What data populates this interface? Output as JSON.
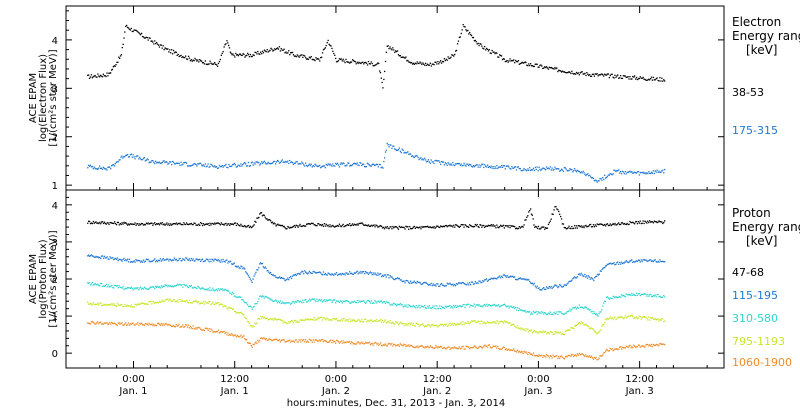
{
  "chart_data": [
    {
      "type": "scatter",
      "ylabel_lines": [
        "ACE EPAM",
        "log(Electron Flux)",
        "[1/(cm²s ster MeV)]"
      ],
      "legend_title": [
        "Electron",
        "Energy ranges",
        "[keV]"
      ],
      "ylim": [
        0.9,
        4.7
      ],
      "yticks": [
        "1",
        "2",
        "3",
        "4"
      ],
      "series": [
        {
          "name": "38-53",
          "color": "#000000",
          "points": [
            [
              -5.5,
              3.25
            ],
            [
              -3,
              3.3
            ],
            [
              -1.5,
              3.7
            ],
            [
              -1,
              4.3
            ],
            [
              1,
              4.1
            ],
            [
              4,
              3.8
            ],
            [
              7,
              3.6
            ],
            [
              10,
              3.5
            ],
            [
              11,
              4.0
            ],
            [
              11.5,
              3.7
            ],
            [
              14,
              3.7
            ],
            [
              17,
              3.85
            ],
            [
              19,
              3.7
            ],
            [
              22,
              3.6
            ],
            [
              23,
              4.0
            ],
            [
              24,
              3.6
            ],
            [
              27,
              3.55
            ],
            [
              29,
              3.5
            ],
            [
              29.5,
              3.0
            ],
            [
              30,
              3.9
            ],
            [
              32,
              3.65
            ],
            [
              33,
              3.55
            ],
            [
              35,
              3.5
            ],
            [
              37,
              3.6
            ],
            [
              38,
              3.7
            ],
            [
              39,
              4.3
            ],
            [
              41,
              3.9
            ],
            [
              44,
              3.6
            ],
            [
              47,
              3.5
            ],
            [
              50,
              3.4
            ],
            [
              54,
              3.3
            ],
            [
              58,
              3.25
            ],
            [
              62,
              3.2
            ],
            [
              63,
              3.2
            ]
          ]
        },
        {
          "name": "175-315",
          "color": "#1f77d4",
          "points": [
            [
              -5.5,
              1.4
            ],
            [
              -3,
              1.35
            ],
            [
              -1,
              1.65
            ],
            [
              2,
              1.5
            ],
            [
              6,
              1.45
            ],
            [
              10,
              1.4
            ],
            [
              14,
              1.45
            ],
            [
              18,
              1.5
            ],
            [
              22,
              1.4
            ],
            [
              26,
              1.45
            ],
            [
              29.5,
              1.4
            ],
            [
              30,
              1.85
            ],
            [
              32,
              1.7
            ],
            [
              35,
              1.5
            ],
            [
              38,
              1.45
            ],
            [
              42,
              1.4
            ],
            [
              46,
              1.35
            ],
            [
              50,
              1.35
            ],
            [
              53,
              1.3
            ],
            [
              55,
              1.1
            ],
            [
              57,
              1.3
            ],
            [
              60,
              1.25
            ],
            [
              63,
              1.3
            ]
          ]
        }
      ]
    },
    {
      "type": "scatter",
      "ylabel_lines": [
        "ACE EPAM",
        "log(Proton Flux)",
        "[1/(cm²s ster MeV)]"
      ],
      "legend_title": [
        "Proton",
        "Energy ranges",
        "[keV]"
      ],
      "ylim": [
        -0.4,
        4.4
      ],
      "yticks": [
        "0",
        "1",
        "2",
        "3",
        "4"
      ],
      "series": [
        {
          "name": "47-68",
          "color": "#000000",
          "points": [
            [
              -5.5,
              3.55
            ],
            [
              0,
              3.5
            ],
            [
              6,
              3.5
            ],
            [
              12,
              3.5
            ],
            [
              14,
              3.4
            ],
            [
              15,
              3.8
            ],
            [
              16.5,
              3.5
            ],
            [
              18,
              3.4
            ],
            [
              21,
              3.5
            ],
            [
              24,
              3.45
            ],
            [
              27,
              3.5
            ],
            [
              30,
              3.4
            ],
            [
              34,
              3.4
            ],
            [
              38,
              3.45
            ],
            [
              42,
              3.45
            ],
            [
              46,
              3.4
            ],
            [
              47,
              3.9
            ],
            [
              47.5,
              3.4
            ],
            [
              49,
              3.4
            ],
            [
              50,
              4.0
            ],
            [
              51,
              3.4
            ],
            [
              54,
              3.45
            ],
            [
              57,
              3.5
            ],
            [
              60,
              3.55
            ],
            [
              63,
              3.55
            ]
          ]
        },
        {
          "name": "115-195",
          "color": "#1f77d4",
          "points": [
            [
              -5.5,
              2.65
            ],
            [
              0,
              2.5
            ],
            [
              6,
              2.55
            ],
            [
              11,
              2.5
            ],
            [
              13,
              2.3
            ],
            [
              14,
              1.95
            ],
            [
              15,
              2.45
            ],
            [
              16.5,
              2.1
            ],
            [
              18,
              2.0
            ],
            [
              20,
              2.2
            ],
            [
              24,
              2.15
            ],
            [
              27,
              2.2
            ],
            [
              30,
              2.1
            ],
            [
              32,
              1.95
            ],
            [
              36,
              1.85
            ],
            [
              40,
              1.9
            ],
            [
              44,
              2.1
            ],
            [
              47,
              1.95
            ],
            [
              48,
              1.75
            ],
            [
              51,
              1.85
            ],
            [
              53,
              2.15
            ],
            [
              54.5,
              2.0
            ],
            [
              56,
              2.4
            ],
            [
              59,
              2.5
            ],
            [
              63,
              2.5
            ]
          ]
        },
        {
          "name": "310-580",
          "color": "#2ed6d0",
          "points": [
            [
              -5.5,
              1.9
            ],
            [
              0,
              1.75
            ],
            [
              5,
              1.85
            ],
            [
              11,
              1.7
            ],
            [
              13,
              1.45
            ],
            [
              14,
              1.2
            ],
            [
              15,
              1.55
            ],
            [
              18,
              1.35
            ],
            [
              21,
              1.45
            ],
            [
              25,
              1.4
            ],
            [
              29,
              1.4
            ],
            [
              32,
              1.3
            ],
            [
              36,
              1.25
            ],
            [
              40,
              1.3
            ],
            [
              44,
              1.3
            ],
            [
              47,
              1.1
            ],
            [
              51,
              1.1
            ],
            [
              53,
              1.3
            ],
            [
              54.5,
              1.1
            ],
            [
              55,
              1.0
            ],
            [
              56,
              1.5
            ],
            [
              59,
              1.6
            ],
            [
              63,
              1.55
            ]
          ]
        },
        {
          "name": "795-1193",
          "color": "#c8e62a",
          "points": [
            [
              -5.5,
              1.35
            ],
            [
              0,
              1.3
            ],
            [
              4,
              1.45
            ],
            [
              10,
              1.35
            ],
            [
              13,
              1.05
            ],
            [
              14,
              0.7
            ],
            [
              15,
              1.0
            ],
            [
              18,
              0.85
            ],
            [
              22,
              0.95
            ],
            [
              26,
              0.9
            ],
            [
              29,
              0.9
            ],
            [
              32,
              0.8
            ],
            [
              36,
              0.75
            ],
            [
              40,
              0.85
            ],
            [
              44,
              0.85
            ],
            [
              47,
              0.6
            ],
            [
              51,
              0.55
            ],
            [
              53,
              0.85
            ],
            [
              54.5,
              0.65
            ],
            [
              55,
              0.55
            ],
            [
              56,
              0.95
            ],
            [
              59,
              1.0
            ],
            [
              63,
              0.9
            ]
          ]
        },
        {
          "name": "1060-1900",
          "color": "#f08c28",
          "points": [
            [
              -5.5,
              0.85
            ],
            [
              -2,
              0.8
            ],
            [
              2,
              0.8
            ],
            [
              6,
              0.75
            ],
            [
              10,
              0.6
            ],
            [
              13,
              0.45
            ],
            [
              14,
              0.2
            ],
            [
              15,
              0.4
            ],
            [
              18,
              0.35
            ],
            [
              22,
              0.35
            ],
            [
              26,
              0.3
            ],
            [
              30,
              0.25
            ],
            [
              34,
              0.2
            ],
            [
              38,
              0.15
            ],
            [
              42,
              0.2
            ],
            [
              45,
              0.1
            ],
            [
              48,
              -0.05
            ],
            [
              51,
              -0.1
            ],
            [
              53,
              0.0
            ],
            [
              55,
              -0.15
            ],
            [
              56,
              0.1
            ],
            [
              59,
              0.2
            ],
            [
              63,
              0.25
            ]
          ]
        }
      ]
    }
  ],
  "xaxis": {
    "xlim": [
      -8,
      70
    ],
    "ticks": [
      {
        "hour": 0,
        "time": "0:00",
        "day": "Jan. 1"
      },
      {
        "hour": 12,
        "time": "12:00",
        "day": "Jan. 1"
      },
      {
        "hour": 24,
        "time": "0:00",
        "day": "Jan. 2"
      },
      {
        "hour": 36,
        "time": "12:00",
        "day": "Jan. 2"
      },
      {
        "hour": 48,
        "time": "0:00",
        "day": "Jan. 3"
      },
      {
        "hour": 60,
        "time": "12:00",
        "day": "Jan. 3"
      }
    ],
    "label": "hours:minutes, Dec. 31, 2013 - Jan.  3, 2014"
  }
}
